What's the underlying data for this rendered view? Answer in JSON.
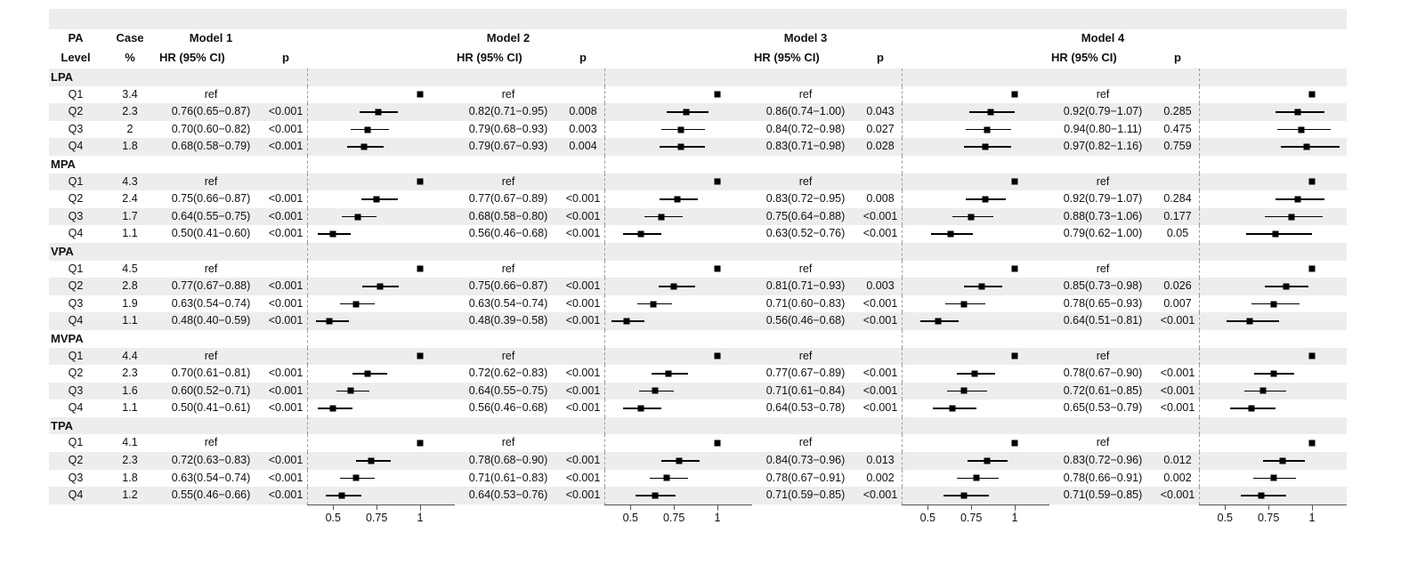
{
  "colors": {
    "stripe": "#ededed",
    "marker": "#000000",
    "ci_line": "#000000",
    "reference_dash": "#9a9a9a",
    "axis": "#555555"
  },
  "chart_data": {
    "type": "scatter",
    "variant": "forest-plot",
    "title": "",
    "x_axis": {
      "range": [
        0.35,
        1.2
      ],
      "ticks": [
        0.5,
        0.75,
        1
      ],
      "tick_labels": [
        "0.5",
        "0.75",
        "1"
      ],
      "reference_line": 1,
      "grid": false
    },
    "header": {
      "pa_line1": "PA",
      "pa_line2": "Level",
      "case_line1": "Case",
      "case_line2": "%"
    },
    "models": [
      {
        "name": "Model 1",
        "hr_label": "HR (95% CI)",
        "p_label": "p"
      },
      {
        "name": "Model 2",
        "hr_label": "HR (95% CI)",
        "p_label": "p"
      },
      {
        "name": "Model 3",
        "hr_label": "HR (95% CI)",
        "p_label": "p"
      },
      {
        "name": "Model 4",
        "hr_label": "HR (95% CI)",
        "p_label": "p"
      }
    ],
    "groups": [
      {
        "label": "LPA",
        "rows": [
          {
            "q": "Q1",
            "case": "3.4",
            "cells": [
              {
                "text": "ref",
                "ref": true
              },
              {
                "text": "ref",
                "ref": true
              },
              {
                "text": "ref",
                "ref": true
              },
              {
                "text": "ref",
                "ref": true
              }
            ]
          },
          {
            "q": "Q2",
            "case": "2.3",
            "cells": [
              {
                "text": "0.76(0.65−0.87)",
                "p": "<0.001",
                "hr": 0.76,
                "lo": 0.65,
                "hi": 0.87
              },
              {
                "text": "0.82(0.71−0.95)",
                "p": "0.008",
                "hr": 0.82,
                "lo": 0.71,
                "hi": 0.95
              },
              {
                "text": "0.86(0.74−1.00)",
                "p": "0.043",
                "hr": 0.86,
                "lo": 0.74,
                "hi": 1.0
              },
              {
                "text": "0.92(0.79−1.07)",
                "p": "0.285",
                "hr": 0.92,
                "lo": 0.79,
                "hi": 1.07
              }
            ]
          },
          {
            "q": "Q3",
            "case": "2",
            "cells": [
              {
                "text": "0.70(0.60−0.82)",
                "p": "<0.001",
                "hr": 0.7,
                "lo": 0.6,
                "hi": 0.82
              },
              {
                "text": "0.79(0.68−0.93)",
                "p": "0.003",
                "hr": 0.79,
                "lo": 0.68,
                "hi": 0.93
              },
              {
                "text": "0.84(0.72−0.98)",
                "p": "0.027",
                "hr": 0.84,
                "lo": 0.72,
                "hi": 0.98
              },
              {
                "text": "0.94(0.80−1.11)",
                "p": "0.475",
                "hr": 0.94,
                "lo": 0.8,
                "hi": 1.11
              }
            ]
          },
          {
            "q": "Q4",
            "case": "1.8",
            "cells": [
              {
                "text": "0.68(0.58−0.79)",
                "p": "<0.001",
                "hr": 0.68,
                "lo": 0.58,
                "hi": 0.79
              },
              {
                "text": "0.79(0.67−0.93)",
                "p": "0.004",
                "hr": 0.79,
                "lo": 0.67,
                "hi": 0.93
              },
              {
                "text": "0.83(0.71−0.98)",
                "p": "0.028",
                "hr": 0.83,
                "lo": 0.71,
                "hi": 0.98
              },
              {
                "text": "0.97(0.82−1.16)",
                "p": "0.759",
                "hr": 0.97,
                "lo": 0.82,
                "hi": 1.16
              }
            ]
          }
        ]
      },
      {
        "label": "MPA",
        "rows": [
          {
            "q": "Q1",
            "case": "4.3",
            "cells": [
              {
                "text": "ref",
                "ref": true
              },
              {
                "text": "ref",
                "ref": true
              },
              {
                "text": "ref",
                "ref": true
              },
              {
                "text": "ref",
                "ref": true
              }
            ]
          },
          {
            "q": "Q2",
            "case": "2.4",
            "cells": [
              {
                "text": "0.75(0.66−0.87)",
                "p": "<0.001",
                "hr": 0.75,
                "lo": 0.66,
                "hi": 0.87
              },
              {
                "text": "0.77(0.67−0.89)",
                "p": "<0.001",
                "hr": 0.77,
                "lo": 0.67,
                "hi": 0.89
              },
              {
                "text": "0.83(0.72−0.95)",
                "p": "0.008",
                "hr": 0.83,
                "lo": 0.72,
                "hi": 0.95
              },
              {
                "text": "0.92(0.79−1.07)",
                "p": "0.284",
                "hr": 0.92,
                "lo": 0.79,
                "hi": 1.07
              }
            ]
          },
          {
            "q": "Q3",
            "case": "1.7",
            "cells": [
              {
                "text": "0.64(0.55−0.75)",
                "p": "<0.001",
                "hr": 0.64,
                "lo": 0.55,
                "hi": 0.75
              },
              {
                "text": "0.68(0.58−0.80)",
                "p": "<0.001",
                "hr": 0.68,
                "lo": 0.58,
                "hi": 0.8
              },
              {
                "text": "0.75(0.64−0.88)",
                "p": "<0.001",
                "hr": 0.75,
                "lo": 0.64,
                "hi": 0.88
              },
              {
                "text": "0.88(0.73−1.06)",
                "p": "0.177",
                "hr": 0.88,
                "lo": 0.73,
                "hi": 1.06
              }
            ]
          },
          {
            "q": "Q4",
            "case": "1.1",
            "cells": [
              {
                "text": "0.50(0.41−0.60)",
                "p": "<0.001",
                "hr": 0.5,
                "lo": 0.41,
                "hi": 0.6
              },
              {
                "text": "0.56(0.46−0.68)",
                "p": "<0.001",
                "hr": 0.56,
                "lo": 0.46,
                "hi": 0.68
              },
              {
                "text": "0.63(0.52−0.76)",
                "p": "<0.001",
                "hr": 0.63,
                "lo": 0.52,
                "hi": 0.76
              },
              {
                "text": "0.79(0.62−1.00)",
                "p": "0.05",
                "hr": 0.79,
                "lo": 0.62,
                "hi": 1.0
              }
            ]
          }
        ]
      },
      {
        "label": "VPA",
        "rows": [
          {
            "q": "Q1",
            "case": "4.5",
            "cells": [
              {
                "text": "ref",
                "ref": true
              },
              {
                "text": "ref",
                "ref": true
              },
              {
                "text": "ref",
                "ref": true
              },
              {
                "text": "ref",
                "ref": true
              }
            ]
          },
          {
            "q": "Q2",
            "case": "2.8",
            "cells": [
              {
                "text": "0.77(0.67−0.88)",
                "p": "<0.001",
                "hr": 0.77,
                "lo": 0.67,
                "hi": 0.88
              },
              {
                "text": "0.75(0.66−0.87)",
                "p": "<0.001",
                "hr": 0.75,
                "lo": 0.66,
                "hi": 0.87
              },
              {
                "text": "0.81(0.71−0.93)",
                "p": "0.003",
                "hr": 0.81,
                "lo": 0.71,
                "hi": 0.93
              },
              {
                "text": "0.85(0.73−0.98)",
                "p": "0.026",
                "hr": 0.85,
                "lo": 0.73,
                "hi": 0.98
              }
            ]
          },
          {
            "q": "Q3",
            "case": "1.9",
            "cells": [
              {
                "text": "0.63(0.54−0.74)",
                "p": "<0.001",
                "hr": 0.63,
                "lo": 0.54,
                "hi": 0.74
              },
              {
                "text": "0.63(0.54−0.74)",
                "p": "<0.001",
                "hr": 0.63,
                "lo": 0.54,
                "hi": 0.74
              },
              {
                "text": "0.71(0.60−0.83)",
                "p": "<0.001",
                "hr": 0.71,
                "lo": 0.6,
                "hi": 0.83
              },
              {
                "text": "0.78(0.65−0.93)",
                "p": "0.007",
                "hr": 0.78,
                "lo": 0.65,
                "hi": 0.93
              }
            ]
          },
          {
            "q": "Q4",
            "case": "1.1",
            "cells": [
              {
                "text": "0.48(0.40−0.59)",
                "p": "<0.001",
                "hr": 0.48,
                "lo": 0.4,
                "hi": 0.59
              },
              {
                "text": "0.48(0.39−0.58)",
                "p": "<0.001",
                "hr": 0.48,
                "lo": 0.39,
                "hi": 0.58
              },
              {
                "text": "0.56(0.46−0.68)",
                "p": "<0.001",
                "hr": 0.56,
                "lo": 0.46,
                "hi": 0.68
              },
              {
                "text": "0.64(0.51−0.81)",
                "p": "<0.001",
                "hr": 0.64,
                "lo": 0.51,
                "hi": 0.81
              }
            ]
          }
        ]
      },
      {
        "label": "MVPA",
        "rows": [
          {
            "q": "Q1",
            "case": "4.4",
            "cells": [
              {
                "text": "ref",
                "ref": true
              },
              {
                "text": "ref",
                "ref": true
              },
              {
                "text": "ref",
                "ref": true
              },
              {
                "text": "ref",
                "ref": true
              }
            ]
          },
          {
            "q": "Q2",
            "case": "2.3",
            "cells": [
              {
                "text": "0.70(0.61−0.81)",
                "p": "<0.001",
                "hr": 0.7,
                "lo": 0.61,
                "hi": 0.81
              },
              {
                "text": "0.72(0.62−0.83)",
                "p": "<0.001",
                "hr": 0.72,
                "lo": 0.62,
                "hi": 0.83
              },
              {
                "text": "0.77(0.67−0.89)",
                "p": "<0.001",
                "hr": 0.77,
                "lo": 0.67,
                "hi": 0.89
              },
              {
                "text": "0.78(0.67−0.90)",
                "p": "<0.001",
                "hr": 0.78,
                "lo": 0.67,
                "hi": 0.9
              }
            ]
          },
          {
            "q": "Q3",
            "case": "1.6",
            "cells": [
              {
                "text": "0.60(0.52−0.71)",
                "p": "<0.001",
                "hr": 0.6,
                "lo": 0.52,
                "hi": 0.71
              },
              {
                "text": "0.64(0.55−0.75)",
                "p": "<0.001",
                "hr": 0.64,
                "lo": 0.55,
                "hi": 0.75
              },
              {
                "text": "0.71(0.61−0.84)",
                "p": "<0.001",
                "hr": 0.71,
                "lo": 0.61,
                "hi": 0.84
              },
              {
                "text": "0.72(0.61−0.85)",
                "p": "<0.001",
                "hr": 0.72,
                "lo": 0.61,
                "hi": 0.85
              }
            ]
          },
          {
            "q": "Q4",
            "case": "1.1",
            "cells": [
              {
                "text": "0.50(0.41−0.61)",
                "p": "<0.001",
                "hr": 0.5,
                "lo": 0.41,
                "hi": 0.61
              },
              {
                "text": "0.56(0.46−0.68)",
                "p": "<0.001",
                "hr": 0.56,
                "lo": 0.46,
                "hi": 0.68
              },
              {
                "text": "0.64(0.53−0.78)",
                "p": "<0.001",
                "hr": 0.64,
                "lo": 0.53,
                "hi": 0.78
              },
              {
                "text": "0.65(0.53−0.79)",
                "p": "<0.001",
                "hr": 0.65,
                "lo": 0.53,
                "hi": 0.79
              }
            ]
          }
        ]
      },
      {
        "label": "TPA",
        "rows": [
          {
            "q": "Q1",
            "case": "4.1",
            "cells": [
              {
                "text": "ref",
                "ref": true
              },
              {
                "text": "ref",
                "ref": true
              },
              {
                "text": "ref",
                "ref": true
              },
              {
                "text": "ref",
                "ref": true
              }
            ]
          },
          {
            "q": "Q2",
            "case": "2.3",
            "cells": [
              {
                "text": "0.72(0.63−0.83)",
                "p": "<0.001",
                "hr": 0.72,
                "lo": 0.63,
                "hi": 0.83
              },
              {
                "text": "0.78(0.68−0.90)",
                "p": "<0.001",
                "hr": 0.78,
                "lo": 0.68,
                "hi": 0.9
              },
              {
                "text": "0.84(0.73−0.96)",
                "p": "0.013",
                "hr": 0.84,
                "lo": 0.73,
                "hi": 0.96
              },
              {
                "text": "0.83(0.72−0.96)",
                "p": "0.012",
                "hr": 0.83,
                "lo": 0.72,
                "hi": 0.96
              }
            ]
          },
          {
            "q": "Q3",
            "case": "1.8",
            "cells": [
              {
                "text": "0.63(0.54−0.74)",
                "p": "<0.001",
                "hr": 0.63,
                "lo": 0.54,
                "hi": 0.74
              },
              {
                "text": "0.71(0.61−0.83)",
                "p": "<0.001",
                "hr": 0.71,
                "lo": 0.61,
                "hi": 0.83
              },
              {
                "text": "0.78(0.67−0.91)",
                "p": "0.002",
                "hr": 0.78,
                "lo": 0.67,
                "hi": 0.91
              },
              {
                "text": "0.78(0.66−0.91)",
                "p": "0.002",
                "hr": 0.78,
                "lo": 0.66,
                "hi": 0.91
              }
            ]
          },
          {
            "q": "Q4",
            "case": "1.2",
            "cells": [
              {
                "text": "0.55(0.46−0.66)",
                "p": "<0.001",
                "hr": 0.55,
                "lo": 0.46,
                "hi": 0.66
              },
              {
                "text": "0.64(0.53−0.76)",
                "p": "<0.001",
                "hr": 0.64,
                "lo": 0.53,
                "hi": 0.76
              },
              {
                "text": "0.71(0.59−0.85)",
                "p": "<0.001",
                "hr": 0.71,
                "lo": 0.59,
                "hi": 0.85
              },
              {
                "text": "0.71(0.59−0.85)",
                "p": "<0.001",
                "hr": 0.71,
                "lo": 0.59,
                "hi": 0.85
              }
            ]
          }
        ]
      }
    ]
  }
}
